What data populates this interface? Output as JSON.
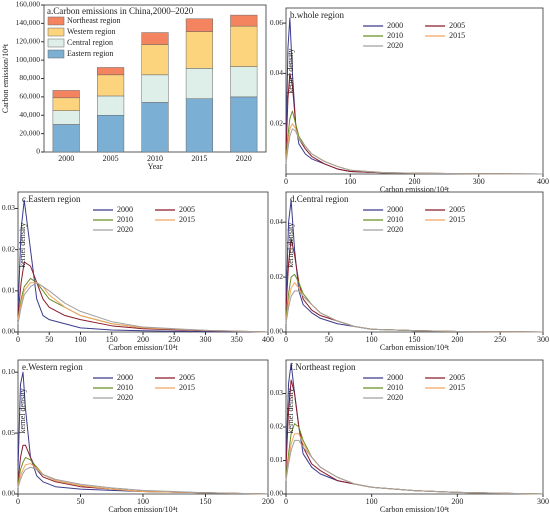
{
  "chart_data": [
    {
      "type": "bar",
      "stacked": true,
      "title": "a.Carbon emissions in China,2000–2020",
      "x_label": "Year",
      "y_label": "Carbon emission/10⁴t",
      "categories": [
        "2000",
        "2005",
        "2010",
        "2015",
        "2020"
      ],
      "series": [
        {
          "name": "Eastern region",
          "color": "#7bafd4",
          "values": [
            30000,
            40000,
            54000,
            58000,
            60000
          ]
        },
        {
          "name": "Central region",
          "color": "#deeee8",
          "values": [
            15000,
            21000,
            30000,
            33000,
            33000
          ]
        },
        {
          "name": "Western region",
          "color": "#fdd47e",
          "values": [
            14000,
            23000,
            33000,
            40000,
            44000
          ]
        },
        {
          "name": "Northeast region",
          "color": "#f4845f",
          "values": [
            8000,
            8000,
            13000,
            14000,
            12000
          ]
        }
      ],
      "ylim": [
        0,
        160000
      ],
      "yticks": [
        0,
        {
          "value": 20000,
          "label": "20,000"
        },
        {
          "value": 40000,
          "label": "40,000"
        },
        {
          "value": 60000,
          "label": "60,000"
        },
        {
          "value": 80000,
          "label": "80,000"
        },
        {
          "value": 100000,
          "label": "100,000"
        },
        {
          "value": 120000,
          "label": "120,000"
        },
        {
          "value": 140000,
          "label": "140,000"
        },
        {
          "value": 160000,
          "label": "160,000"
        }
      ]
    },
    {
      "type": "line",
      "title": "b.whole region",
      "x_label": "Carbon emission/10⁴t",
      "y_label": "kernel density",
      "x": [
        0,
        3,
        6,
        10,
        15,
        20,
        30,
        40,
        60,
        80,
        100,
        150,
        200,
        300,
        400
      ],
      "series": [
        {
          "name": "2000",
          "color": "#3b3b8c",
          "values": [
            0.01,
            0.05,
            0.062,
            0.04,
            0.02,
            0.012,
            0.008,
            0.006,
            0.004,
            0.002,
            0.001,
            0.0005,
            0.0003,
            0.0001,
            0
          ]
        },
        {
          "name": "2005",
          "color": "#8b1a2b",
          "values": [
            0.008,
            0.03,
            0.04,
            0.035,
            0.02,
            0.014,
            0.01,
            0.007,
            0.004,
            0.002,
            0.001,
            0.0005,
            0.0003,
            0.0001,
            0
          ]
        },
        {
          "name": "2010",
          "color": "#6b8e23",
          "values": [
            0.006,
            0.015,
            0.022,
            0.025,
            0.02,
            0.015,
            0.011,
            0.008,
            0.005,
            0.003,
            0.0015,
            0.0006,
            0.0003,
            0.0001,
            0
          ]
        },
        {
          "name": "2015",
          "color": "#f4a460",
          "values": [
            0.005,
            0.012,
            0.018,
            0.02,
            0.018,
            0.014,
            0.011,
            0.008,
            0.005,
            0.003,
            0.0015,
            0.0006,
            0.0003,
            0.0001,
            0
          ]
        },
        {
          "name": "2020",
          "color": "#a0a0a0",
          "values": [
            0.004,
            0.01,
            0.015,
            0.018,
            0.017,
            0.014,
            0.011,
            0.008,
            0.005,
            0.003,
            0.0015,
            0.0006,
            0.0003,
            0.0001,
            0
          ]
        }
      ],
      "xlim": [
        0,
        400
      ],
      "xticks": [
        0,
        100,
        200,
        300,
        400
      ],
      "ylim": [
        0,
        0.066
      ],
      "yticks": [
        0.02,
        0.04,
        0.06
      ]
    },
    {
      "type": "line",
      "title": "c.Eastern region",
      "x_label": "Carbon emission/10⁴t",
      "y_label": "kernel density",
      "x": [
        0,
        5,
        10,
        20,
        30,
        40,
        50,
        75,
        100,
        150,
        200,
        300,
        400
      ],
      "series": [
        {
          "name": "2000",
          "color": "#3b3b8c",
          "values": [
            0.005,
            0.025,
            0.032,
            0.02,
            0.008,
            0.004,
            0.003,
            0.002,
            0.001,
            0.0005,
            0.0003,
            0.0001,
            0
          ]
        },
        {
          "name": "2005",
          "color": "#8b1a2b",
          "values": [
            0.004,
            0.012,
            0.017,
            0.016,
            0.012,
            0.008,
            0.006,
            0.004,
            0.003,
            0.0015,
            0.0008,
            0.0003,
            0
          ]
        },
        {
          "name": "2010",
          "color": "#6b8e23",
          "values": [
            0.003,
            0.008,
            0.011,
            0.013,
            0.012,
            0.01,
            0.008,
            0.006,
            0.004,
            0.002,
            0.001,
            0.0004,
            0
          ]
        },
        {
          "name": "2015",
          "color": "#f4a460",
          "values": [
            0.003,
            0.007,
            0.01,
            0.012,
            0.012,
            0.011,
            0.009,
            0.006,
            0.004,
            0.002,
            0.001,
            0.0004,
            0
          ]
        },
        {
          "name": "2020",
          "color": "#a0a0a0",
          "values": [
            0.002,
            0.006,
            0.009,
            0.011,
            0.012,
            0.011,
            0.01,
            0.007,
            0.005,
            0.0025,
            0.0012,
            0.0004,
            0
          ]
        }
      ],
      "xlim": [
        0,
        400
      ],
      "xticks": [
        0,
        50,
        100,
        150,
        200,
        250,
        300,
        350,
        400
      ],
      "ylim": [
        0,
        0.034
      ],
      "yticks": [
        {
          "value": 0,
          "label": "0.00"
        },
        0.01,
        0.02,
        0.03
      ]
    },
    {
      "type": "line",
      "title": "d.Central region",
      "x_label": "Carbon emission/10⁴t",
      "y_label": "kernel density",
      "x": [
        0,
        3,
        6,
        10,
        15,
        20,
        30,
        40,
        60,
        80,
        100,
        150,
        200,
        300
      ],
      "series": [
        {
          "name": "2000",
          "color": "#3b3b8c",
          "values": [
            0.01,
            0.04,
            0.048,
            0.03,
            0.015,
            0.01,
            0.007,
            0.005,
            0.003,
            0.002,
            0.001,
            0.0005,
            0.0002,
            0
          ]
        },
        {
          "name": "2005",
          "color": "#8b1a2b",
          "values": [
            0.008,
            0.025,
            0.034,
            0.028,
            0.018,
            0.012,
            0.008,
            0.006,
            0.004,
            0.002,
            0.001,
            0.0005,
            0.0002,
            0
          ]
        },
        {
          "name": "2010",
          "color": "#6b8e23",
          "values": [
            0.005,
            0.014,
            0.02,
            0.021,
            0.018,
            0.014,
            0.01,
            0.007,
            0.004,
            0.002,
            0.001,
            0.0005,
            0.0002,
            0
          ]
        },
        {
          "name": "2015",
          "color": "#f4a460",
          "values": [
            0.004,
            0.011,
            0.016,
            0.018,
            0.016,
            0.013,
            0.01,
            0.007,
            0.004,
            0.002,
            0.001,
            0.0005,
            0.0002,
            0
          ]
        },
        {
          "name": "2020",
          "color": "#a0a0a0",
          "values": [
            0.003,
            0.009,
            0.013,
            0.015,
            0.015,
            0.013,
            0.01,
            0.007,
            0.004,
            0.002,
            0.001,
            0.0005,
            0.0002,
            0
          ]
        }
      ],
      "xlim": [
        0,
        300
      ],
      "xticks": [
        0,
        50,
        100,
        150,
        200,
        250,
        300
      ],
      "ylim": [
        0,
        0.051
      ],
      "yticks": [
        {
          "value": 0,
          "label": "0.00"
        },
        0.02,
        0.04
      ]
    },
    {
      "type": "line",
      "title": "e.Western region",
      "x_label": "Carbon emission/10⁴t",
      "y_label": "kernel density",
      "x": [
        0,
        2,
        4,
        6,
        10,
        15,
        20,
        30,
        50,
        75,
        100,
        150,
        200
      ],
      "series": [
        {
          "name": "2000",
          "color": "#3b3b8c",
          "values": [
            0.02,
            0.09,
            0.1,
            0.07,
            0.03,
            0.015,
            0.01,
            0.006,
            0.004,
            0.003,
            0.002,
            0.001,
            0
          ]
        },
        {
          "name": "2005",
          "color": "#8b1a2b",
          "values": [
            0.01,
            0.03,
            0.04,
            0.04,
            0.03,
            0.02,
            0.014,
            0.01,
            0.006,
            0.004,
            0.002,
            0.001,
            0
          ]
        },
        {
          "name": "2010",
          "color": "#6b8e23",
          "values": [
            0.008,
            0.02,
            0.026,
            0.03,
            0.028,
            0.022,
            0.016,
            0.011,
            0.007,
            0.004,
            0.002,
            0.001,
            0
          ]
        },
        {
          "name": "2015",
          "color": "#f4a460",
          "values": [
            0.006,
            0.015,
            0.02,
            0.024,
            0.025,
            0.021,
            0.016,
            0.011,
            0.007,
            0.004,
            0.002,
            0.001,
            0
          ]
        },
        {
          "name": "2020",
          "color": "#a0a0a0",
          "values": [
            0.005,
            0.012,
            0.017,
            0.02,
            0.022,
            0.02,
            0.016,
            0.012,
            0.008,
            0.005,
            0.003,
            0.001,
            0
          ]
        }
      ],
      "xlim": [
        0,
        200
      ],
      "xticks": [
        0,
        50,
        100,
        150,
        200
      ],
      "ylim": [
        0,
        0.11
      ],
      "yticks": [
        {
          "value": 0,
          "label": "0.00"
        },
        0.05,
        {
          "value": 0.1,
          "label": "0.10"
        }
      ]
    },
    {
      "type": "line",
      "title": "f.Northeast region",
      "x_label": "Carbon emission/10⁴t",
      "y_label": "kernel density",
      "x": [
        0,
        3,
        6,
        10,
        15,
        20,
        30,
        40,
        60,
        80,
        100,
        150,
        200,
        300
      ],
      "series": [
        {
          "name": "2000",
          "color": "#3b3b8c",
          "values": [
            0.01,
            0.033,
            0.039,
            0.03,
            0.02,
            0.012,
            0.008,
            0.006,
            0.004,
            0.003,
            0.002,
            0.001,
            0.0005,
            0
          ]
        },
        {
          "name": "2005",
          "color": "#8b1a2b",
          "values": [
            0.008,
            0.025,
            0.034,
            0.03,
            0.02,
            0.014,
            0.009,
            0.007,
            0.004,
            0.003,
            0.002,
            0.001,
            0.0005,
            0
          ]
        },
        {
          "name": "2010",
          "color": "#6b8e23",
          "values": [
            0.005,
            0.012,
            0.018,
            0.021,
            0.02,
            0.016,
            0.011,
            0.008,
            0.005,
            0.003,
            0.002,
            0.001,
            0.0005,
            0
          ]
        },
        {
          "name": "2015",
          "color": "#f4a460",
          "values": [
            0.004,
            0.01,
            0.015,
            0.018,
            0.018,
            0.015,
            0.011,
            0.008,
            0.005,
            0.003,
            0.002,
            0.001,
            0.0005,
            0
          ]
        },
        {
          "name": "2020",
          "color": "#a0a0a0",
          "values": [
            0.004,
            0.009,
            0.013,
            0.016,
            0.016,
            0.014,
            0.011,
            0.008,
            0.005,
            0.003,
            0.002,
            0.001,
            0.0005,
            0
          ]
        }
      ],
      "xlim": [
        0,
        300
      ],
      "xticks": [
        0,
        100,
        200,
        300
      ],
      "ylim": [
        0,
        0.04
      ],
      "yticks": [
        {
          "value": 0,
          "label": "0.00"
        },
        0.01,
        0.02,
        0.03
      ]
    }
  ]
}
